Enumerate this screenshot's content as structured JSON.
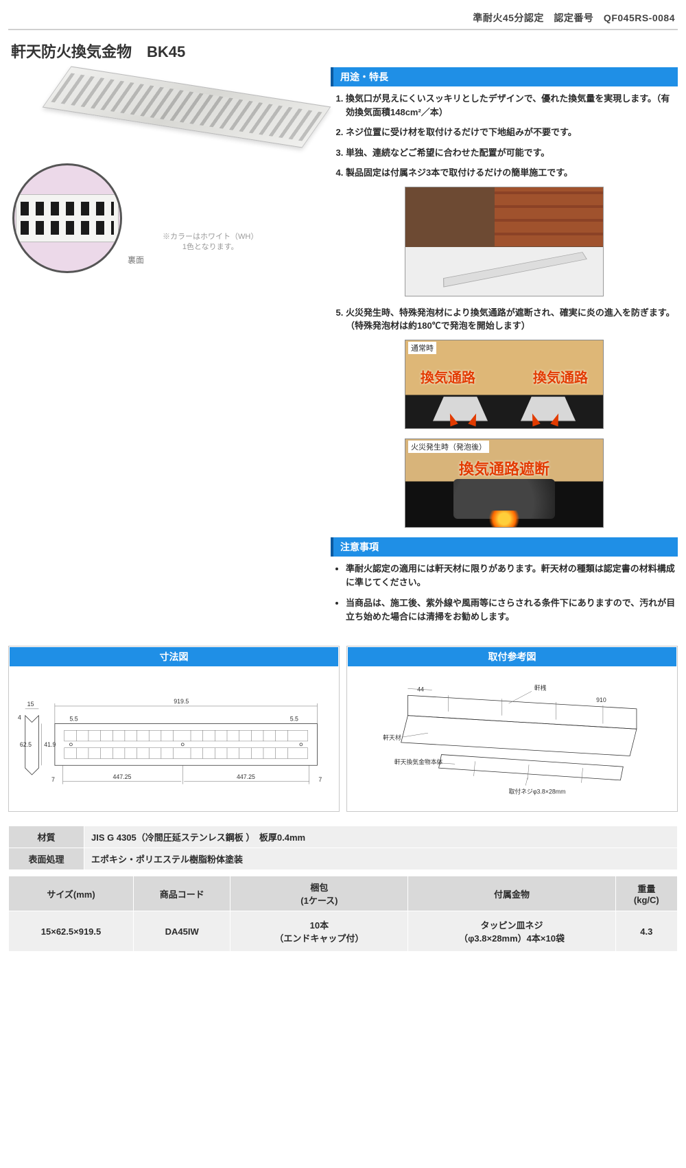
{
  "header": {
    "cert_text": "準耐火45分認定　認定番号　QF045RS-0084"
  },
  "title": "軒天防火換気金物　BK45",
  "product_image": {
    "inset_label": "裏面",
    "color_note_1": "※カラーはホワイト（WH）",
    "color_note_2": "1色となります。"
  },
  "features": {
    "heading": "用途・特長",
    "items": [
      "換気口が見えにくいスッキリとしたデザインで、優れた換気量を実現します。（有効換気面積148cm²／本）",
      "ネジ位置に受け材を取付けるだけで下地組みが不要です。",
      "単独、連続などご希望に合わせた配置が可能です。",
      "製品固定は付属ネジ3本で取付けるだけの簡単施工です。",
      "火災発生時、特殊発泡材により換気通路が遮断され、確実に炎の進入を防ぎます。\n（特殊発泡材は約180℃で発泡を開始します）"
    ],
    "photo_normal_label": "通常時",
    "photo_fire_label": "火災発生時（発泡後）",
    "duct_text": "換気通路",
    "duct_block_text": "換気通路遮断"
  },
  "notes": {
    "heading": "注意事項",
    "items": [
      "準耐火認定の適用には軒天材に限りがあります。軒天材の種類は認定書の材料構成に準じてください。",
      "当商品は、施工後、紫外線や風雨等にさらされる条件下にありますので、汚れが目立ち始めた場合には清掃をお勧めします。"
    ]
  },
  "diagrams": {
    "dim_heading": "寸法図",
    "install_heading": "取付参考図",
    "dim": {
      "w_total": "919.5",
      "edge_left": "15",
      "edge_gap": "4",
      "inner_pad_l": "5.5",
      "inner_pad_r": "5.5",
      "h_outer": "62.5",
      "h_inner": "41.9",
      "half": "447.25",
      "seven": "7"
    },
    "install": {
      "nokizashi": "軒桟",
      "nokiten": "軒天材",
      "body": "軒天換気金物本体",
      "screw": "取付ネジ\nφ3.8×28mm",
      "len": "910",
      "off": "44"
    }
  },
  "spec1": {
    "rows": [
      {
        "label": "材質",
        "value": "JIS G 4305（冷間圧延ステンレス鋼板 ）　板厚0.4mm"
      },
      {
        "label": "表面処理",
        "value": "エポキシ・ポリエステル樹脂粉体塗装"
      }
    ]
  },
  "spec2": {
    "headers": [
      "サイズ(mm)",
      "商品コード",
      "梱包\n(1ケース)",
      "付属金物",
      "重量\n(kg/C)"
    ],
    "row": [
      "15×62.5×919.5",
      "DA45IW",
      "10本\n（エンドキャップ付）",
      "タッピン皿ネジ\n（φ3.8×28mm）4本×10袋",
      "4.3"
    ]
  },
  "colors": {
    "blue": "#1f8fe6",
    "blue_dark": "#0b5aa0",
    "grey_head": "#d9d9d9",
    "grey_cell": "#efefef",
    "orange": "#e23b00"
  }
}
